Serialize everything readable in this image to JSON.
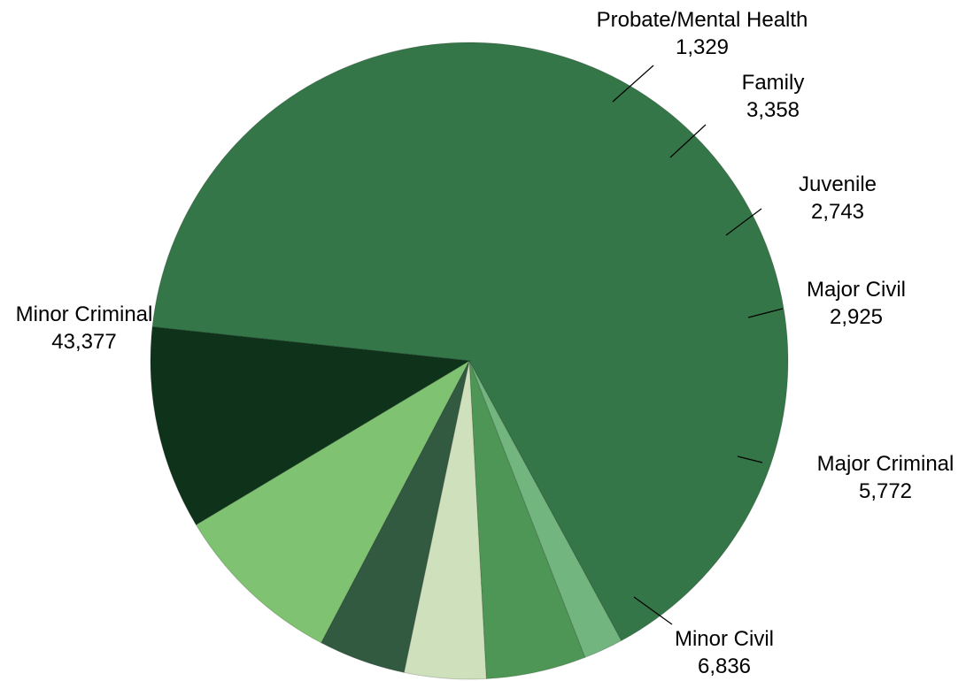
{
  "chart_data": {
    "type": "pie",
    "slices": [
      {
        "label": "Minor Criminal",
        "value_text": "43,377",
        "value": 43377,
        "color": "#347647"
      },
      {
        "label": "Probate/Mental Health",
        "value_text": "1,329",
        "value": 1329,
        "color": "#73b57f"
      },
      {
        "label": "Family",
        "value_text": "3,358",
        "value": 3358,
        "color": "#4e9655"
      },
      {
        "label": "Juvenile",
        "value_text": "2,743",
        "value": 2743,
        "color": "#cfe1bc"
      },
      {
        "label": "Major Civil",
        "value_text": "2,925",
        "value": 2925,
        "color": "#325a41"
      },
      {
        "label": "Major Criminal",
        "value_text": "5,772",
        "value": 5772,
        "color": "#7fc272"
      },
      {
        "label": "Minor Civil",
        "value_text": "6,836",
        "value": 6836,
        "color": "#0e331a"
      }
    ]
  }
}
